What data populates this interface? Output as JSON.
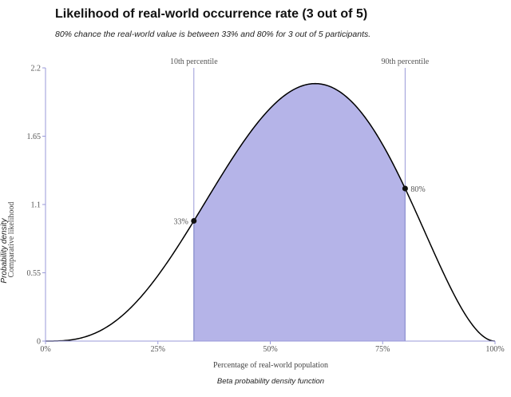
{
  "title": "Likelihood of real-world occurrence rate (3 out of 5)",
  "subtitle": "80% chance the real-world value is between 33% and 80% for 3 out of 5 participants.",
  "colors": {
    "fill": "#b5b4e8",
    "fill_stroke": "#3b5a9a",
    "curve": "#000000",
    "percentile_line": "#9a9ad8",
    "axis": "#9a9ad8",
    "marker": "#111111"
  },
  "chart_data": {
    "type": "area",
    "distribution": "Beta",
    "alpha": 4,
    "beta": 3,
    "x_domain": [
      0,
      1
    ],
    "ylim": [
      0,
      2.2
    ],
    "x_ticks": [
      0,
      0.25,
      0.5,
      0.75,
      1
    ],
    "x_tick_labels": [
      "0%",
      "25%",
      "50%",
      "75%",
      "100%"
    ],
    "y_ticks": [
      0,
      0.55,
      1.1,
      1.65,
      2.2
    ],
    "y_tick_labels": [
      "0",
      "0.55",
      "1.1",
      "1.65",
      "2.2"
    ],
    "xlabel": "Percentage of real-world population",
    "ylabel_primary": "Probability density",
    "ylabel_secondary": "Comparative likelihood",
    "footer": "Beta probability density function",
    "percentiles": [
      {
        "label": "10th percentile",
        "x": 0.33,
        "value_label": "33%"
      },
      {
        "label": "90th percentile",
        "x": 0.8,
        "value_label": "80%"
      }
    ],
    "shaded_interval": [
      0.33,
      0.8
    ],
    "grid": false
  }
}
